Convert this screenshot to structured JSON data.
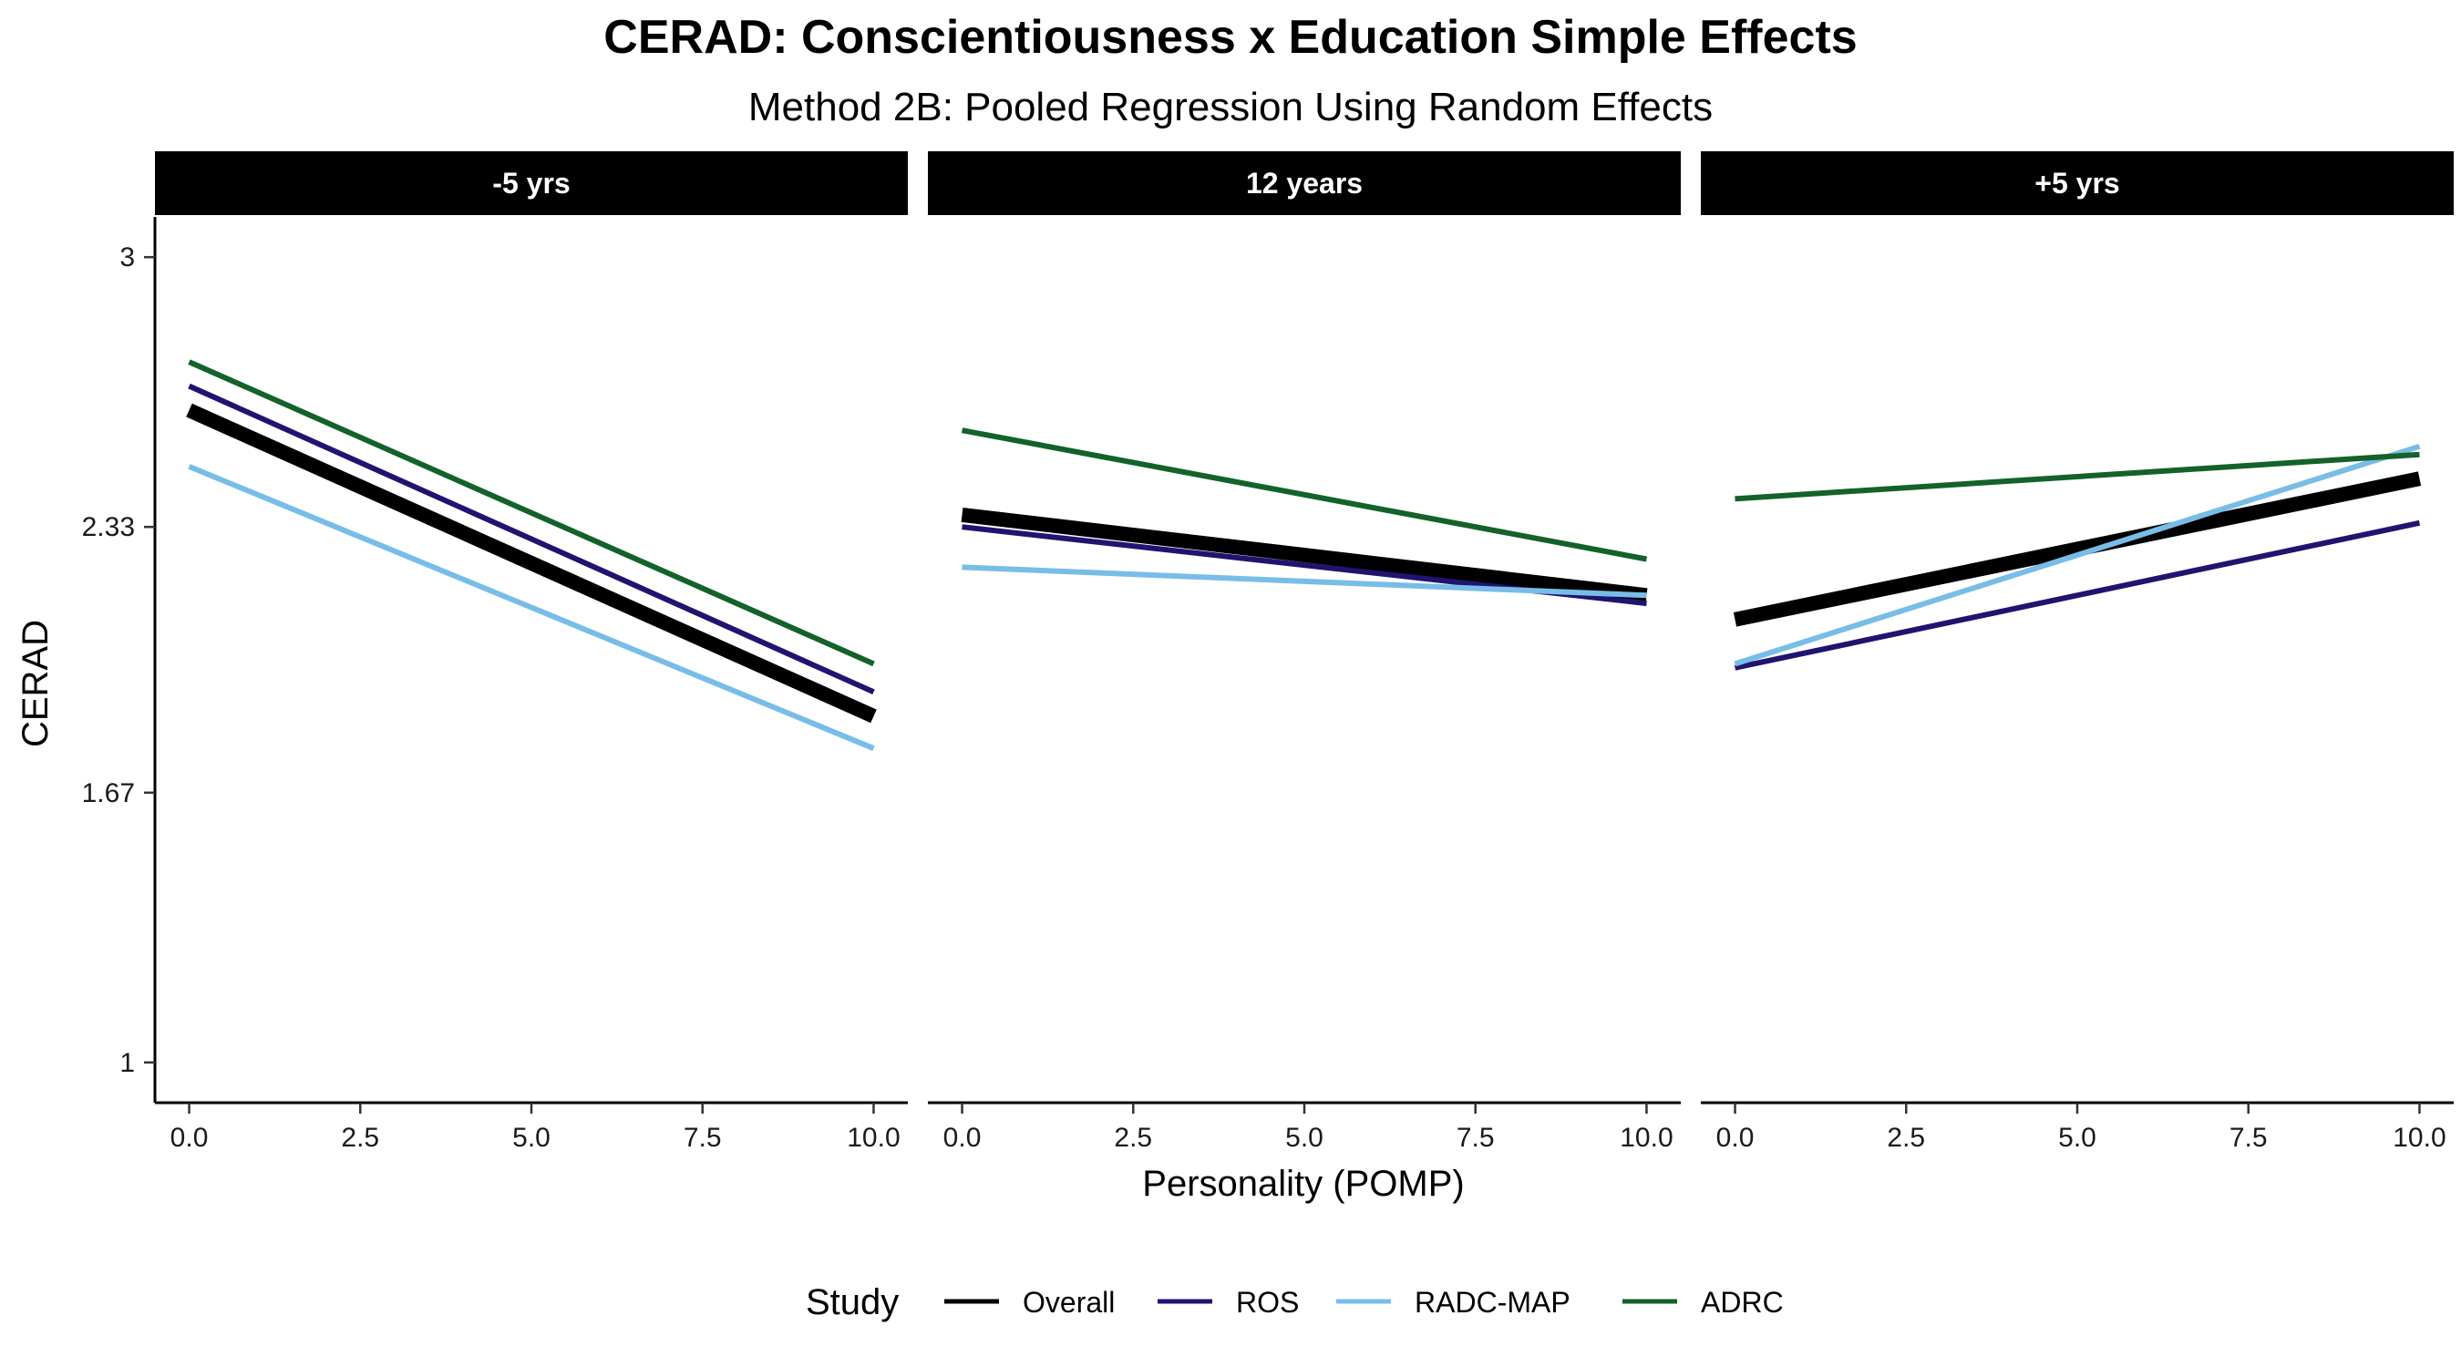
{
  "chart_data": {
    "type": "line",
    "title": "CERAD: Conscientiousness x Education Simple Effects",
    "subtitle": "Method 2B: Pooled Regression Using Random Effects",
    "xlabel": "Personality (POMP)",
    "ylabel": "CERAD",
    "xlim": [
      -0.5,
      10.5
    ],
    "ylim": [
      0.9,
      3.1
    ],
    "xticks": [
      0,
      2.5,
      5,
      7.5,
      10
    ],
    "xtick_labels": [
      "0.0",
      "2.5",
      "5.0",
      "7.5",
      "10.0"
    ],
    "yticks": [
      1,
      1.67,
      2.33,
      3
    ],
    "ytick_labels": [
      "1",
      "1.67",
      "2.33",
      "3"
    ],
    "grid": false,
    "legend": {
      "title": "Study",
      "position": "bottom"
    },
    "series_styles": [
      {
        "name": "Overall",
        "color": "#000000",
        "emphasis": "thick"
      },
      {
        "name": "ROS",
        "color": "#1f1470",
        "emphasis": "normal"
      },
      {
        "name": "RADC-MAP",
        "color": "#77bde8",
        "emphasis": "normal"
      },
      {
        "name": "ADRC",
        "color": "#13622a",
        "emphasis": "normal"
      }
    ],
    "panels": [
      {
        "label": "-5 yrs",
        "series": [
          {
            "name": "Overall",
            "x": [
              0,
              10
            ],
            "y": [
              2.62,
              1.86
            ]
          },
          {
            "name": "ROS",
            "x": [
              0,
              10
            ],
            "y": [
              2.68,
              1.92
            ]
          },
          {
            "name": "RADC-MAP",
            "x": [
              0,
              10
            ],
            "y": [
              2.48,
              1.78
            ]
          },
          {
            "name": "ADRC",
            "x": [
              0,
              10
            ],
            "y": [
              2.74,
              1.99
            ]
          }
        ]
      },
      {
        "label": "12 years",
        "series": [
          {
            "name": "Overall",
            "x": [
              0,
              10
            ],
            "y": [
              2.36,
              2.16
            ]
          },
          {
            "name": "ROS",
            "x": [
              0,
              10
            ],
            "y": [
              2.33,
              2.14
            ]
          },
          {
            "name": "RADC-MAP",
            "x": [
              0,
              10
            ],
            "y": [
              2.23,
              2.16
            ]
          },
          {
            "name": "ADRC",
            "x": [
              0,
              10
            ],
            "y": [
              2.57,
              2.25
            ]
          }
        ]
      },
      {
        "label": "+5 yrs",
        "series": [
          {
            "name": "Overall",
            "x": [
              0,
              10
            ],
            "y": [
              2.1,
              2.45
            ]
          },
          {
            "name": "ROS",
            "x": [
              0,
              10
            ],
            "y": [
              1.98,
              2.34
            ]
          },
          {
            "name": "RADC-MAP",
            "x": [
              0,
              10
            ],
            "y": [
              1.99,
              2.53
            ]
          },
          {
            "name": "ADRC",
            "x": [
              0,
              10
            ],
            "y": [
              2.4,
              2.51
            ]
          }
        ]
      }
    ]
  }
}
